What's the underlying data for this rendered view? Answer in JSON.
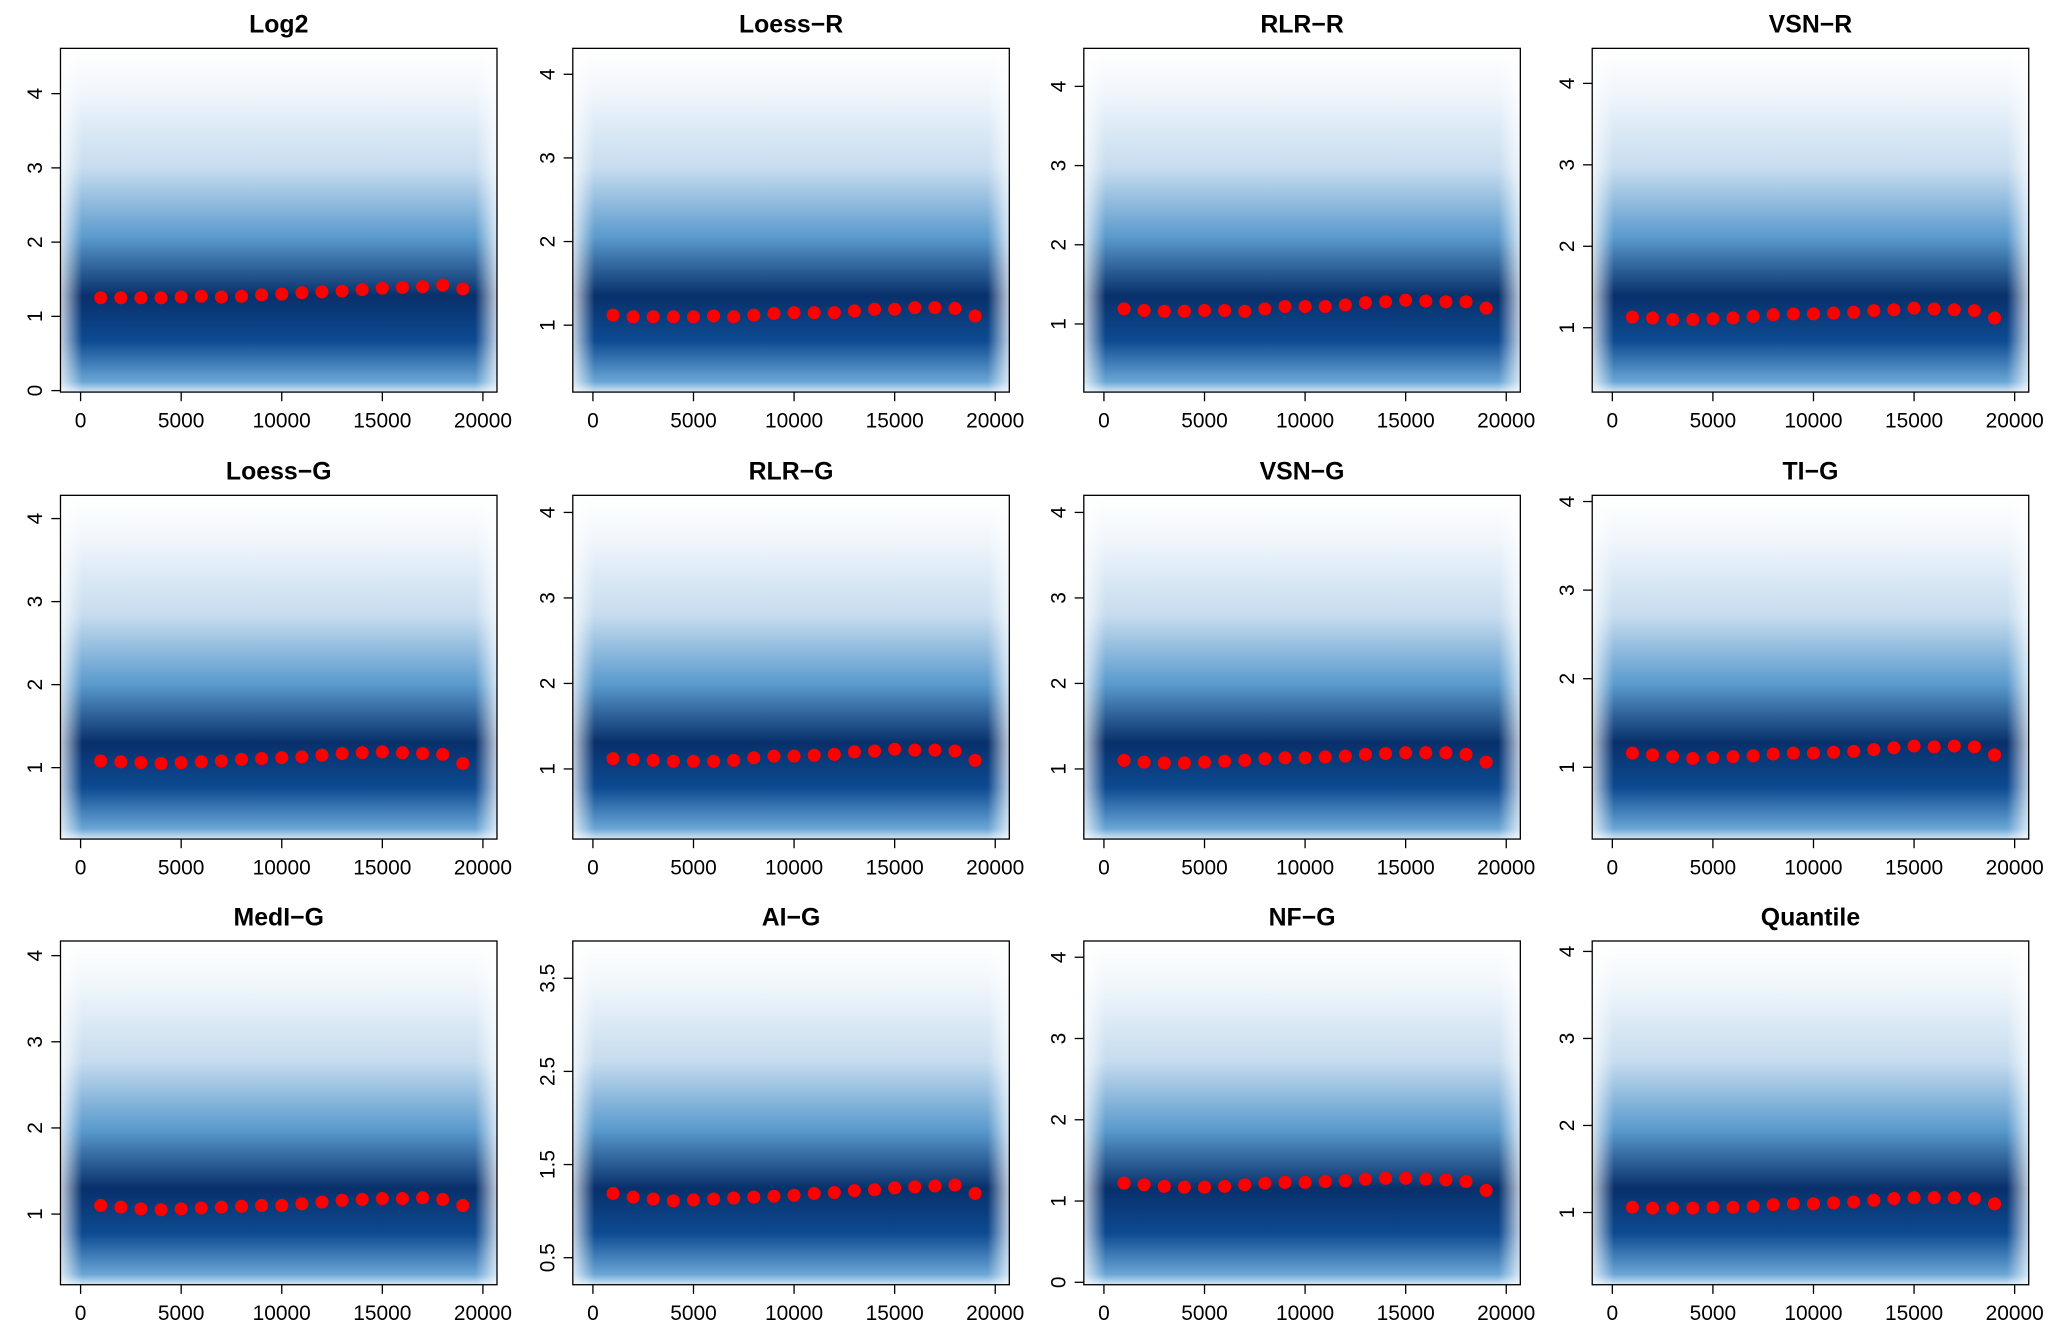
{
  "chart_data": [
    {
      "type": "scatter",
      "title": "Log2",
      "color": "#ff0000",
      "x": [
        1000,
        2000,
        3000,
        4000,
        5000,
        6000,
        7000,
        8000,
        9000,
        10000,
        11000,
        12000,
        13000,
        14000,
        15000,
        16000,
        17000,
        18000,
        19000
      ],
      "values": [
        1.25,
        1.25,
        1.25,
        1.25,
        1.26,
        1.27,
        1.26,
        1.27,
        1.29,
        1.3,
        1.32,
        1.33,
        1.34,
        1.36,
        1.38,
        1.39,
        1.4,
        1.42,
        1.37
      ],
      "xlim": [
        -1000,
        20700
      ],
      "ylim": [
        -0.02,
        4.61
      ],
      "xticks": [
        0,
        5000,
        10000,
        15000,
        20000
      ],
      "yticks": [
        0,
        1,
        2,
        3,
        4
      ]
    },
    {
      "type": "scatter",
      "title": "Loess−R",
      "color": "#ff0000",
      "x": [
        1000,
        2000,
        3000,
        4000,
        5000,
        6000,
        7000,
        8000,
        9000,
        10000,
        11000,
        12000,
        13000,
        14000,
        15000,
        16000,
        17000,
        18000,
        19000
      ],
      "values": [
        1.12,
        1.1,
        1.1,
        1.1,
        1.1,
        1.11,
        1.1,
        1.12,
        1.14,
        1.15,
        1.15,
        1.15,
        1.17,
        1.19,
        1.19,
        1.21,
        1.21,
        1.2,
        1.11
      ],
      "xlim": [
        -1000,
        20700
      ],
      "ylim": [
        0.2,
        4.31
      ],
      "xticks": [
        0,
        5000,
        10000,
        15000,
        20000
      ],
      "yticks": [
        1,
        2,
        3,
        4
      ]
    },
    {
      "type": "scatter",
      "title": "RLR−R",
      "color": "#ff0000",
      "x": [
        1000,
        2000,
        3000,
        4000,
        5000,
        6000,
        7000,
        8000,
        9000,
        10000,
        11000,
        12000,
        13000,
        14000,
        15000,
        16000,
        17000,
        18000,
        19000
      ],
      "values": [
        1.19,
        1.17,
        1.16,
        1.16,
        1.17,
        1.17,
        1.16,
        1.19,
        1.22,
        1.22,
        1.22,
        1.24,
        1.27,
        1.28,
        1.3,
        1.29,
        1.28,
        1.28,
        1.2
      ],
      "xlim": [
        -1000,
        20700
      ],
      "ylim": [
        0.14,
        4.48
      ],
      "xticks": [
        0,
        5000,
        10000,
        15000,
        20000
      ],
      "yticks": [
        1,
        2,
        3,
        4
      ]
    },
    {
      "type": "scatter",
      "title": "VSN−R",
      "color": "#ff0000",
      "x": [
        1000,
        2000,
        3000,
        4000,
        5000,
        6000,
        7000,
        8000,
        9000,
        10000,
        11000,
        12000,
        13000,
        14000,
        15000,
        16000,
        17000,
        18000,
        19000
      ],
      "values": [
        1.13,
        1.12,
        1.1,
        1.1,
        1.11,
        1.12,
        1.14,
        1.16,
        1.17,
        1.17,
        1.18,
        1.19,
        1.21,
        1.22,
        1.24,
        1.23,
        1.22,
        1.21,
        1.12
      ],
      "xlim": [
        -1000,
        20700
      ],
      "ylim": [
        0.21,
        4.43
      ],
      "xticks": [
        0,
        5000,
        10000,
        15000,
        20000
      ],
      "yticks": [
        1,
        2,
        3,
        4
      ]
    },
    {
      "type": "scatter",
      "title": "Loess−G",
      "color": "#ff0000",
      "x": [
        1000,
        2000,
        3000,
        4000,
        5000,
        6000,
        7000,
        8000,
        9000,
        10000,
        11000,
        12000,
        13000,
        14000,
        15000,
        16000,
        17000,
        18000,
        19000
      ],
      "values": [
        1.08,
        1.07,
        1.06,
        1.05,
        1.06,
        1.07,
        1.08,
        1.1,
        1.11,
        1.12,
        1.13,
        1.15,
        1.17,
        1.18,
        1.19,
        1.18,
        1.17,
        1.16,
        1.05
      ],
      "xlim": [
        -1000,
        20700
      ],
      "ylim": [
        0.14,
        4.28
      ],
      "xticks": [
        0,
        5000,
        10000,
        15000,
        20000
      ],
      "yticks": [
        1,
        2,
        3,
        4
      ]
    },
    {
      "type": "scatter",
      "title": "RLR−G",
      "color": "#ff0000",
      "x": [
        1000,
        2000,
        3000,
        4000,
        5000,
        6000,
        7000,
        8000,
        9000,
        10000,
        11000,
        12000,
        13000,
        14000,
        15000,
        16000,
        17000,
        18000,
        19000
      ],
      "values": [
        1.12,
        1.11,
        1.1,
        1.09,
        1.09,
        1.09,
        1.1,
        1.13,
        1.15,
        1.15,
        1.16,
        1.17,
        1.2,
        1.21,
        1.23,
        1.22,
        1.22,
        1.21,
        1.1
      ],
      "xlim": [
        -1000,
        20700
      ],
      "ylim": [
        0.18,
        4.2
      ],
      "xticks": [
        0,
        5000,
        10000,
        15000,
        20000
      ],
      "yticks": [
        1,
        2,
        3,
        4
      ]
    },
    {
      "type": "scatter",
      "title": "VSN−G",
      "color": "#ff0000",
      "x": [
        1000,
        2000,
        3000,
        4000,
        5000,
        6000,
        7000,
        8000,
        9000,
        10000,
        11000,
        12000,
        13000,
        14000,
        15000,
        16000,
        17000,
        18000,
        19000
      ],
      "values": [
        1.1,
        1.08,
        1.07,
        1.07,
        1.08,
        1.09,
        1.1,
        1.12,
        1.13,
        1.13,
        1.14,
        1.15,
        1.17,
        1.18,
        1.19,
        1.19,
        1.19,
        1.17,
        1.08
      ],
      "xlim": [
        -1000,
        20700
      ],
      "ylim": [
        0.18,
        4.2
      ],
      "xticks": [
        0,
        5000,
        10000,
        15000,
        20000
      ],
      "yticks": [
        1,
        2,
        3,
        4
      ]
    },
    {
      "type": "scatter",
      "title": "TI−G",
      "color": "#ff0000",
      "x": [
        1000,
        2000,
        3000,
        4000,
        5000,
        6000,
        7000,
        8000,
        9000,
        10000,
        11000,
        12000,
        13000,
        14000,
        15000,
        16000,
        17000,
        18000,
        19000
      ],
      "values": [
        1.16,
        1.14,
        1.12,
        1.1,
        1.11,
        1.12,
        1.13,
        1.15,
        1.16,
        1.16,
        1.17,
        1.18,
        1.2,
        1.22,
        1.24,
        1.23,
        1.24,
        1.23,
        1.14
      ],
      "xlim": [
        -1000,
        20700
      ],
      "ylim": [
        0.19,
        4.07
      ],
      "xticks": [
        0,
        5000,
        10000,
        15000,
        20000
      ],
      "yticks": [
        1,
        2,
        3,
        4
      ]
    },
    {
      "type": "scatter",
      "title": "MedI−G",
      "color": "#ff0000",
      "x": [
        1000,
        2000,
        3000,
        4000,
        5000,
        6000,
        7000,
        8000,
        9000,
        10000,
        11000,
        12000,
        13000,
        14000,
        15000,
        16000,
        17000,
        18000,
        19000
      ],
      "values": [
        1.1,
        1.08,
        1.06,
        1.05,
        1.06,
        1.07,
        1.08,
        1.09,
        1.1,
        1.1,
        1.12,
        1.14,
        1.16,
        1.17,
        1.18,
        1.18,
        1.19,
        1.17,
        1.1
      ],
      "xlim": [
        -1000,
        20700
      ],
      "ylim": [
        0.18,
        4.17
      ],
      "xticks": [
        0,
        5000,
        10000,
        15000,
        20000
      ],
      "yticks": [
        1,
        2,
        3,
        4
      ]
    },
    {
      "type": "scatter",
      "title": "AI−G",
      "color": "#ff0000",
      "x": [
        1000,
        2000,
        3000,
        4000,
        5000,
        6000,
        7000,
        8000,
        9000,
        10000,
        11000,
        12000,
        13000,
        14000,
        15000,
        16000,
        17000,
        18000,
        19000
      ],
      "values": [
        1.19,
        1.15,
        1.13,
        1.11,
        1.12,
        1.13,
        1.14,
        1.15,
        1.16,
        1.17,
        1.19,
        1.2,
        1.22,
        1.23,
        1.25,
        1.26,
        1.27,
        1.28,
        1.19
      ],
      "xlim": [
        -1000,
        20700
      ],
      "ylim": [
        0.21,
        3.9
      ],
      "xticks": [
        0,
        5000,
        10000,
        15000,
        20000
      ],
      "yticks": [
        0.5,
        1.5,
        2.5,
        3.5
      ]
    },
    {
      "type": "scatter",
      "title": "NF−G",
      "color": "#ff0000",
      "x": [
        1000,
        2000,
        3000,
        4000,
        5000,
        6000,
        7000,
        8000,
        9000,
        10000,
        11000,
        12000,
        13000,
        14000,
        15000,
        16000,
        17000,
        18000,
        19000
      ],
      "values": [
        1.22,
        1.2,
        1.18,
        1.17,
        1.17,
        1.18,
        1.2,
        1.22,
        1.23,
        1.23,
        1.24,
        1.25,
        1.27,
        1.28,
        1.28,
        1.27,
        1.26,
        1.24,
        1.13
      ],
      "xlim": [
        -1000,
        20700
      ],
      "ylim": [
        -0.03,
        4.2
      ],
      "xticks": [
        0,
        5000,
        10000,
        15000,
        20000
      ],
      "yticks": [
        0,
        1,
        2,
        3,
        4
      ]
    },
    {
      "type": "scatter",
      "title": "Quantile",
      "color": "#ff0000",
      "x": [
        1000,
        2000,
        3000,
        4000,
        5000,
        6000,
        7000,
        8000,
        9000,
        10000,
        11000,
        12000,
        13000,
        14000,
        15000,
        16000,
        17000,
        18000,
        19000
      ],
      "values": [
        1.06,
        1.05,
        1.05,
        1.05,
        1.06,
        1.06,
        1.07,
        1.09,
        1.1,
        1.1,
        1.11,
        1.12,
        1.14,
        1.16,
        1.17,
        1.17,
        1.17,
        1.16,
        1.1
      ],
      "xlim": [
        -1000,
        20700
      ],
      "ylim": [
        0.17,
        4.12
      ],
      "xticks": [
        0,
        5000,
        10000,
        15000,
        20000
      ],
      "yticks": [
        1,
        2,
        3,
        4
      ]
    }
  ]
}
